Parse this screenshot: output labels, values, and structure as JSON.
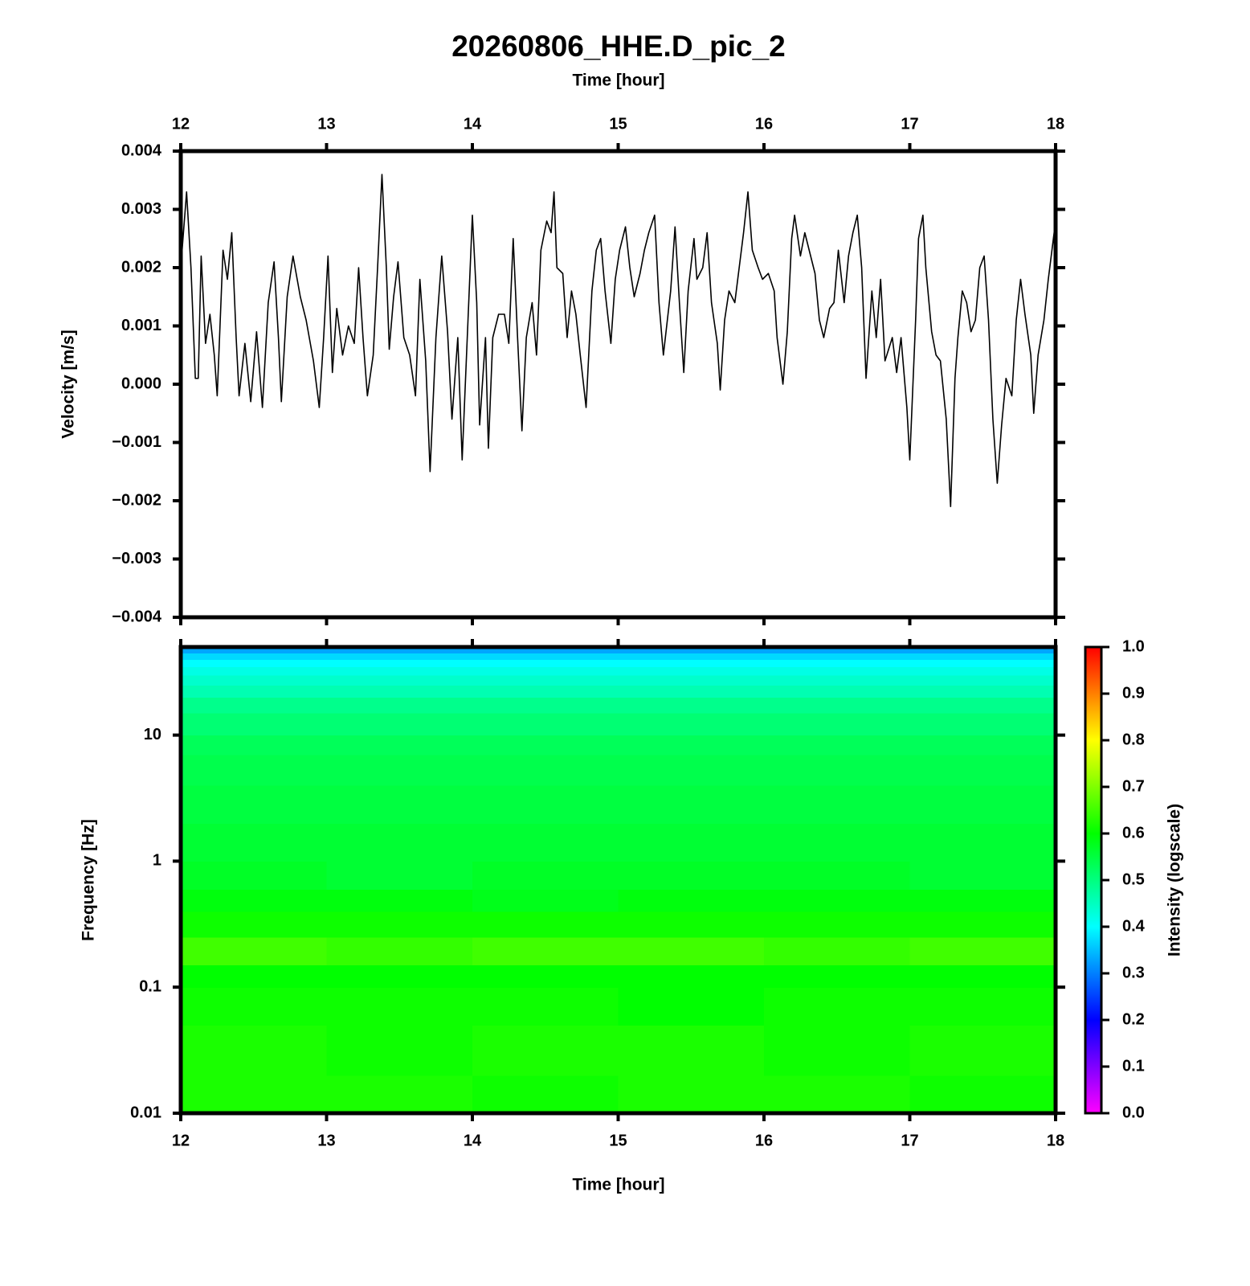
{
  "chart_data": [
    {
      "type": "line",
      "title": "20260806_HHE.D_pic_2",
      "xlabel": "Time [hour]",
      "ylabel": "Velocity [m/s]",
      "xlim": [
        12,
        18
      ],
      "xticks": [
        12,
        13,
        14,
        15,
        16,
        17,
        18
      ],
      "ylim": [
        -0.004,
        0.004
      ],
      "yticks": [
        {
          "value": -0.004,
          "label": "−0.004"
        },
        {
          "value": -0.003,
          "label": "−0.003"
        },
        {
          "value": -0.002,
          "label": "−0.002"
        },
        {
          "value": -0.001,
          "label": "−0.001"
        },
        {
          "value": 0,
          "label": "0.000"
        },
        0.001,
        0.002,
        0.003,
        0.004
      ],
      "color": "#000000",
      "x": [
        12,
        12.04,
        12.07,
        12.1,
        12.12,
        12.14,
        12.17,
        12.2,
        12.23,
        12.25,
        12.29,
        12.32,
        12.35,
        12.38,
        12.4,
        12.44,
        12.48,
        12.52,
        12.56,
        12.6,
        12.64,
        12.67,
        12.69,
        12.73,
        12.77,
        12.82,
        12.86,
        12.91,
        12.95,
        12.98,
        13.01,
        13.04,
        13.07,
        13.11,
        13.15,
        13.19,
        13.22,
        13.25,
        13.28,
        13.32,
        13.35,
        13.38,
        13.41,
        13.43,
        13.46,
        13.49,
        13.53,
        13.57,
        13.61,
        13.64,
        13.68,
        13.71,
        13.75,
        13.79,
        13.83,
        13.86,
        13.9,
        13.93,
        13.97,
        14,
        14.03,
        14.05,
        14.09,
        14.11,
        14.14,
        14.18,
        14.22,
        14.25,
        14.28,
        14.31,
        14.34,
        14.37,
        14.41,
        14.44,
        14.47,
        14.51,
        14.54,
        14.56,
        14.58,
        14.62,
        14.65,
        14.68,
        14.71,
        14.74,
        14.78,
        14.82,
        14.85,
        14.88,
        14.91,
        14.95,
        14.98,
        15.01,
        15.05,
        15.08,
        15.11,
        15.15,
        15.18,
        15.21,
        15.25,
        15.28,
        15.31,
        15.36,
        15.39,
        15.42,
        15.45,
        15.48,
        15.52,
        15.54,
        15.58,
        15.61,
        15.64,
        15.68,
        15.7,
        15.73,
        15.76,
        15.8,
        15.83,
        15.86,
        15.89,
        15.92,
        15.96,
        15.99,
        16.03,
        16.07,
        16.09,
        16.13,
        16.16,
        16.19,
        16.21,
        16.25,
        16.28,
        16.31,
        16.35,
        16.38,
        16.41,
        16.45,
        16.48,
        16.51,
        16.55,
        16.58,
        16.61,
        16.64,
        16.67,
        16.7,
        16.74,
        16.77,
        16.8,
        16.83,
        16.88,
        16.91,
        16.94,
        16.98,
        17,
        17.04,
        17.06,
        17.09,
        17.11,
        17.15,
        17.18,
        17.21,
        17.25,
        17.28,
        17.31,
        17.33,
        17.36,
        17.39,
        17.42,
        17.45,
        17.48,
        17.51,
        17.54,
        17.57,
        17.6,
        17.63,
        17.66,
        17.7,
        17.73,
        17.76,
        17.79,
        17.83,
        17.85,
        17.88,
        17.92,
        17.95,
        18
      ],
      "values": [
        0.002,
        0.0033,
        0.002,
        0.0001,
        0.0001,
        0.0022,
        0.0007,
        0.0012,
        0.0005,
        -0.0002,
        0.0023,
        0.0018,
        0.0026,
        0.0008,
        -0.0002,
        0.0007,
        -0.0003,
        0.0009,
        -0.0004,
        0.0014,
        0.0021,
        0.0008,
        -0.0003,
        0.0015,
        0.0022,
        0.0015,
        0.0011,
        0.0004,
        -0.0004,
        0.0008,
        0.0022,
        0.0002,
        0.0013,
        0.0005,
        0.001,
        0.0007,
        0.002,
        0.0008,
        -0.0002,
        0.0005,
        0.002,
        0.0036,
        0.002,
        0.0006,
        0.0015,
        0.0021,
        0.0008,
        0.0005,
        -0.0002,
        0.0018,
        0.0004,
        -0.0015,
        0.0008,
        0.0022,
        0.0009,
        -0.0006,
        0.0008,
        -0.0013,
        0.0011,
        0.0029,
        0.0014,
        -0.0007,
        0.0008,
        -0.0011,
        0.0008,
        0.0012,
        0.0012,
        0.0007,
        0.0025,
        0.0008,
        -0.0008,
        0.0008,
        0.0014,
        0.0005,
        0.0023,
        0.0028,
        0.0026,
        0.0033,
        0.002,
        0.0019,
        0.0008,
        0.0016,
        0.0012,
        0.0005,
        -0.0004,
        0.0016,
        0.0023,
        0.0025,
        0.0016,
        0.0007,
        0.0018,
        0.0023,
        0.0027,
        0.002,
        0.0015,
        0.0019,
        0.0023,
        0.0026,
        0.0029,
        0.0014,
        0.0005,
        0.0016,
        0.0027,
        0.0014,
        0.0002,
        0.0016,
        0.0025,
        0.0018,
        0.002,
        0.0026,
        0.0014,
        0.0007,
        -0.0001,
        0.0011,
        0.0016,
        0.0014,
        0.002,
        0.0026,
        0.0033,
        0.0023,
        0.002,
        0.0018,
        0.0019,
        0.0016,
        0.0008,
        0,
        0.0009,
        0.0025,
        0.0029,
        0.0022,
        0.0026,
        0.0023,
        0.0019,
        0.0011,
        0.0008,
        0.0013,
        0.0014,
        0.0023,
        0.0014,
        0.0022,
        0.0026,
        0.0029,
        0.002,
        0.0001,
        0.0016,
        0.0008,
        0.0018,
        0.0004,
        0.0008,
        0.0002,
        0.0008,
        -0.0004,
        -0.0013,
        0.0011,
        0.0025,
        0.0029,
        0.002,
        0.0009,
        0.0005,
        0.0004,
        -0.0006,
        -0.0021,
        0.0001,
        0.0008,
        0.0016,
        0.0014,
        0.0009,
        0.0011,
        0.002,
        0.0022,
        0.0011,
        -0.0006,
        -0.0017,
        -0.0007,
        0.0001,
        -0.0002,
        0.0011,
        0.0018,
        0.0012,
        0.0005,
        -0.0005,
        0.0005,
        0.0011,
        0.0018,
        0.0028
      ]
    },
    {
      "type": "heatmap",
      "xlabel": "Time [hour]",
      "ylabel": "Frequency [Hz]",
      "colorbar_label": "Intensity (logscale)",
      "xlim": [
        12,
        18
      ],
      "xticks": [
        12,
        13,
        14,
        15,
        16,
        17,
        18
      ],
      "yscale": "log",
      "ylim": [
        0.01,
        50
      ],
      "yticks": [
        0.01,
        0.1,
        1,
        10
      ],
      "zlim": [
        0,
        1
      ],
      "zticks": [
        {
          "value": 0,
          "label": "0.0"
        },
        0.1,
        0.2,
        0.3,
        0.4,
        0.5,
        0.6,
        0.7,
        0.8,
        0.9,
        {
          "value": 1,
          "label": "1.0"
        }
      ],
      "colormap": [
        "#ff00ff",
        "#0000ff",
        "#00ffff",
        "#00ff00",
        "#ffff00",
        "#ff0000"
      ],
      "xbins": [
        12,
        13,
        14,
        15,
        16,
        17,
        18
      ],
      "ybins": [
        0.01,
        0.02,
        0.05,
        0.1,
        0.15,
        0.25,
        0.4,
        0.6,
        1,
        2,
        4,
        7,
        10,
        15,
        20,
        25,
        30,
        35,
        40,
        45,
        50
      ],
      "z": [
        [
          0.62,
          0.62,
          0.61,
          0.62,
          0.62,
          0.61
        ],
        [
          0.62,
          0.61,
          0.62,
          0.62,
          0.61,
          0.62
        ],
        [
          0.61,
          0.61,
          0.61,
          0.6,
          0.61,
          0.61
        ],
        [
          0.6,
          0.6,
          0.6,
          0.6,
          0.6,
          0.6
        ],
        [
          0.65,
          0.64,
          0.65,
          0.65,
          0.64,
          0.65
        ],
        [
          0.61,
          0.61,
          0.61,
          0.61,
          0.61,
          0.61
        ],
        [
          0.59,
          0.59,
          0.58,
          0.59,
          0.59,
          0.59
        ],
        [
          0.57,
          0.56,
          0.57,
          0.57,
          0.57,
          0.56
        ],
        [
          0.56,
          0.56,
          0.56,
          0.56,
          0.56,
          0.56
        ],
        [
          0.55,
          0.55,
          0.55,
          0.55,
          0.55,
          0.55
        ],
        [
          0.54,
          0.54,
          0.54,
          0.54,
          0.54,
          0.54
        ],
        [
          0.53,
          0.53,
          0.53,
          0.53,
          0.53,
          0.53
        ],
        [
          0.51,
          0.51,
          0.51,
          0.51,
          0.51,
          0.51
        ],
        [
          0.49,
          0.49,
          0.49,
          0.49,
          0.49,
          0.49
        ],
        [
          0.46,
          0.46,
          0.46,
          0.46,
          0.46,
          0.46
        ],
        [
          0.44,
          0.44,
          0.44,
          0.44,
          0.44,
          0.44
        ],
        [
          0.42,
          0.42,
          0.42,
          0.42,
          0.42,
          0.42
        ],
        [
          0.4,
          0.4,
          0.4,
          0.4,
          0.4,
          0.4
        ],
        [
          0.37,
          0.37,
          0.37,
          0.37,
          0.37,
          0.37
        ],
        [
          0.33,
          0.33,
          0.33,
          0.33,
          0.33,
          0.33
        ]
      ]
    }
  ]
}
